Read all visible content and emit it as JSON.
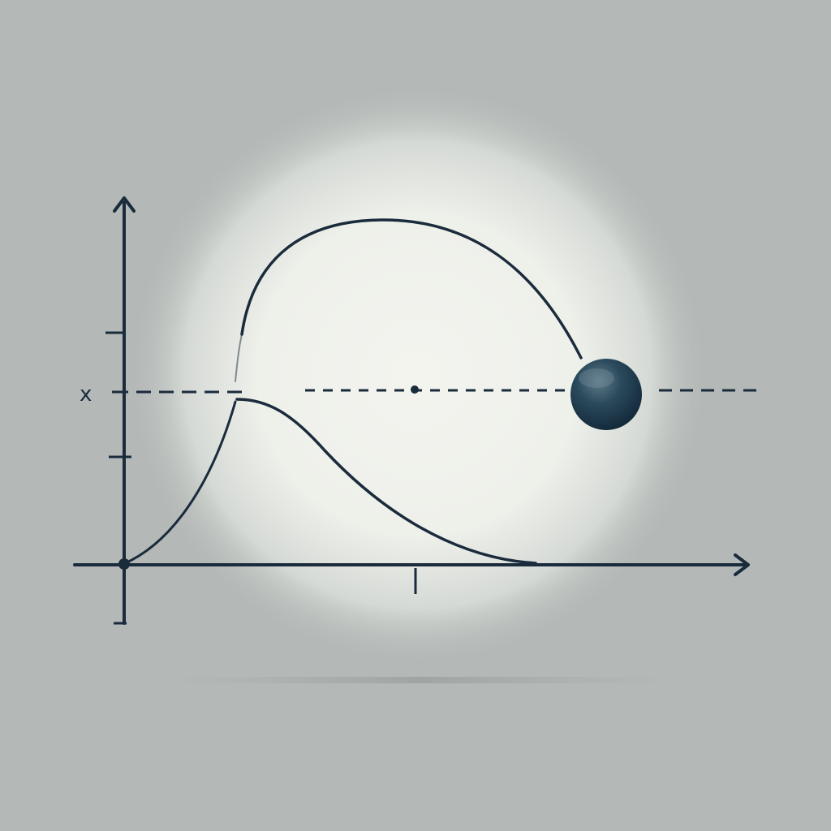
{
  "colors": {
    "background": "#b4b8b6",
    "glow_center": "#f3f3ee",
    "ink": "#1a2b3c",
    "ball": "#1f3b4d",
    "ball_highlight": "#5f7a88"
  },
  "diagram": {
    "y_axis_label": "x",
    "icons": {
      "y_axis_arrow": "arrow-up-icon",
      "x_axis_arrow": "arrow-right-icon",
      "ball": "sphere-icon"
    }
  }
}
